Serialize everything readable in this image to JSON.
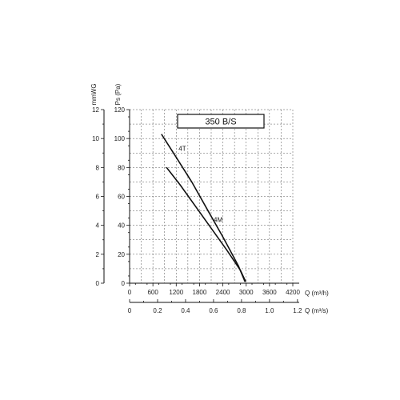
{
  "chart_data": {
    "type": "line",
    "title": "350 B/S",
    "y_left_outer": {
      "label": "mmWG",
      "ticks": [
        "0",
        "2",
        "4",
        "6",
        "8",
        "10",
        "12"
      ],
      "range": [
        0,
        12
      ]
    },
    "y_left_inner": {
      "label": "Ps (Pa)",
      "ticks": [
        "0",
        "20",
        "40",
        "60",
        "80",
        "100",
        "120"
      ],
      "range": [
        0,
        120
      ]
    },
    "x_primary": {
      "label": "Q (m³/h)",
      "ticks": [
        "0",
        "600",
        "1200",
        "1800",
        "2400",
        "3000",
        "3600",
        "4200"
      ],
      "range": [
        0,
        4200
      ]
    },
    "x_secondary": {
      "label": "Q (m³/s)",
      "ticks": [
        "0",
        "0.2",
        "0.4",
        "0.6",
        "0.8",
        "1.0",
        "1.2"
      ]
    },
    "grid": true,
    "series": [
      {
        "name": "4T",
        "x": [
          820,
          1200,
          1600,
          2000,
          2400,
          2800,
          2970
        ],
        "y": [
          103,
          87,
          70,
          51,
          32,
          12,
          1
        ]
      },
      {
        "name": "4M",
        "x": [
          950,
          1300,
          1700,
          2100,
          2500,
          2850,
          2990
        ],
        "y": [
          80,
          68,
          53,
          38,
          23,
          9,
          1
        ]
      }
    ]
  }
}
